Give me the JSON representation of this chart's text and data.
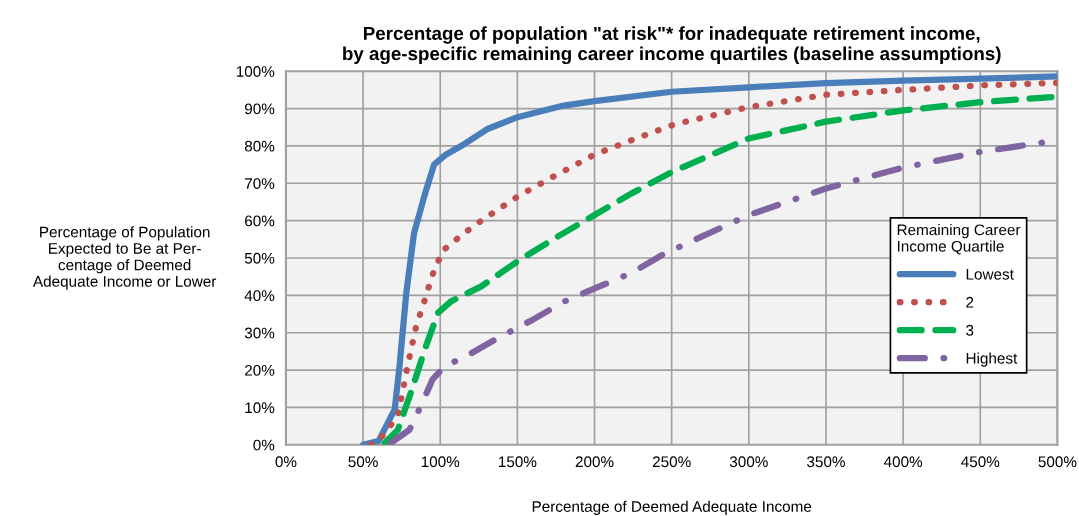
{
  "chart_data": {
    "type": "line",
    "title": "Percentage of population \"at risk\"* for inadequate retirement income,\nby age-specific remaining career income quartiles (baseline assumptions)",
    "xlabel": "Percentage of Deemed Adequate Income",
    "ylabel": "Percentage of Population\nExpected to Be at Per-\ncentage of Deemed\nAdequate Income or Lower",
    "legend_title": "Remaining Career\nIncome Quartile",
    "series": [
      {
        "name": "Lowest",
        "color": "#4a7ebb",
        "line_style": "solid",
        "x": [
          50,
          60,
          70.5,
          73.6,
          78,
          83,
          90,
          96,
          103,
          116,
          131,
          150,
          180,
          200,
          250,
          300,
          350,
          400,
          450,
          500
        ],
        "values": [
          0,
          1,
          9.5,
          21,
          40.6,
          56.6,
          67,
          75,
          77.5,
          80.6,
          84.6,
          87.7,
          90.8,
          92,
          94.5,
          95.7,
          96.8,
          97.5,
          98,
          98.6
        ]
      },
      {
        "name": "2",
        "color": "#c0504d",
        "line_style": "dotted",
        "x": [
          55,
          60,
          72.5,
          79,
          84.4,
          90,
          95,
          101.7,
          114.7,
          128.8,
          150,
          173,
          200,
          227,
          252,
          300,
          350,
          400,
          450,
          500
        ],
        "values": [
          0,
          1,
          7.7,
          21.5,
          31.7,
          38.8,
          45.5,
          52,
          56.4,
          60.6,
          66.4,
          71.7,
          77.7,
          82,
          85.8,
          90.4,
          93.7,
          95,
          96.2,
          96.9
        ]
      },
      {
        "name": "3",
        "color": "#00b050",
        "line_style": "dashed",
        "x": [
          64,
          72.5,
          81,
          90,
          98.5,
          107,
          126.6,
          151.5,
          176,
          200,
          224,
          250,
          300,
          350,
          400,
          450,
          500
        ],
        "values": [
          0.5,
          4,
          14,
          25.5,
          35.3,
          38.4,
          42.4,
          49.5,
          55.7,
          61.5,
          67.3,
          73,
          82,
          86.5,
          89.5,
          91.7,
          93.2
        ]
      },
      {
        "name": "Highest",
        "color": "#8064a2",
        "line_style": "dashdot",
        "x": [
          68,
          80,
          87,
          95,
          103,
          118,
          137.5,
          160,
          180.7,
          202,
          224,
          244.6,
          300,
          350,
          400,
          450,
          500
        ],
        "values": [
          0.5,
          4,
          10,
          17.5,
          21,
          24,
          28.6,
          33.5,
          38.4,
          42.2,
          46,
          51,
          61.5,
          68.6,
          74.2,
          78.4,
          81.5
        ]
      }
    ],
    "xlim": [
      0,
      500
    ],
    "xticks": [
      {
        "value": 0,
        "label": "0%"
      },
      {
        "value": 50,
        "label": "50%"
      },
      {
        "value": 100,
        "label": "100%"
      },
      {
        "value": 150,
        "label": "150%"
      },
      {
        "value": 200,
        "label": "200%"
      },
      {
        "value": 250,
        "label": "250%"
      },
      {
        "value": 300,
        "label": "300%"
      },
      {
        "value": 350,
        "label": "350%"
      },
      {
        "value": 400,
        "label": "400%"
      },
      {
        "value": 450,
        "label": "450%"
      },
      {
        "value": 500,
        "label": "500%"
      }
    ],
    "ylim": [
      0,
      100
    ],
    "yticks": [
      {
        "value": 0,
        "label": "0%"
      },
      {
        "value": 10,
        "label": "10%"
      },
      {
        "value": 20,
        "label": "20%"
      },
      {
        "value": 30,
        "label": "30%"
      },
      {
        "value": 40,
        "label": "40%"
      },
      {
        "value": 50,
        "label": "50%"
      },
      {
        "value": 60,
        "label": "60%"
      },
      {
        "value": 70,
        "label": "70%"
      },
      {
        "value": 80,
        "label": "80%"
      },
      {
        "value": 90,
        "label": "90%"
      },
      {
        "value": 100,
        "label": "100%"
      }
    ],
    "grid": true,
    "legend": "center right"
  }
}
